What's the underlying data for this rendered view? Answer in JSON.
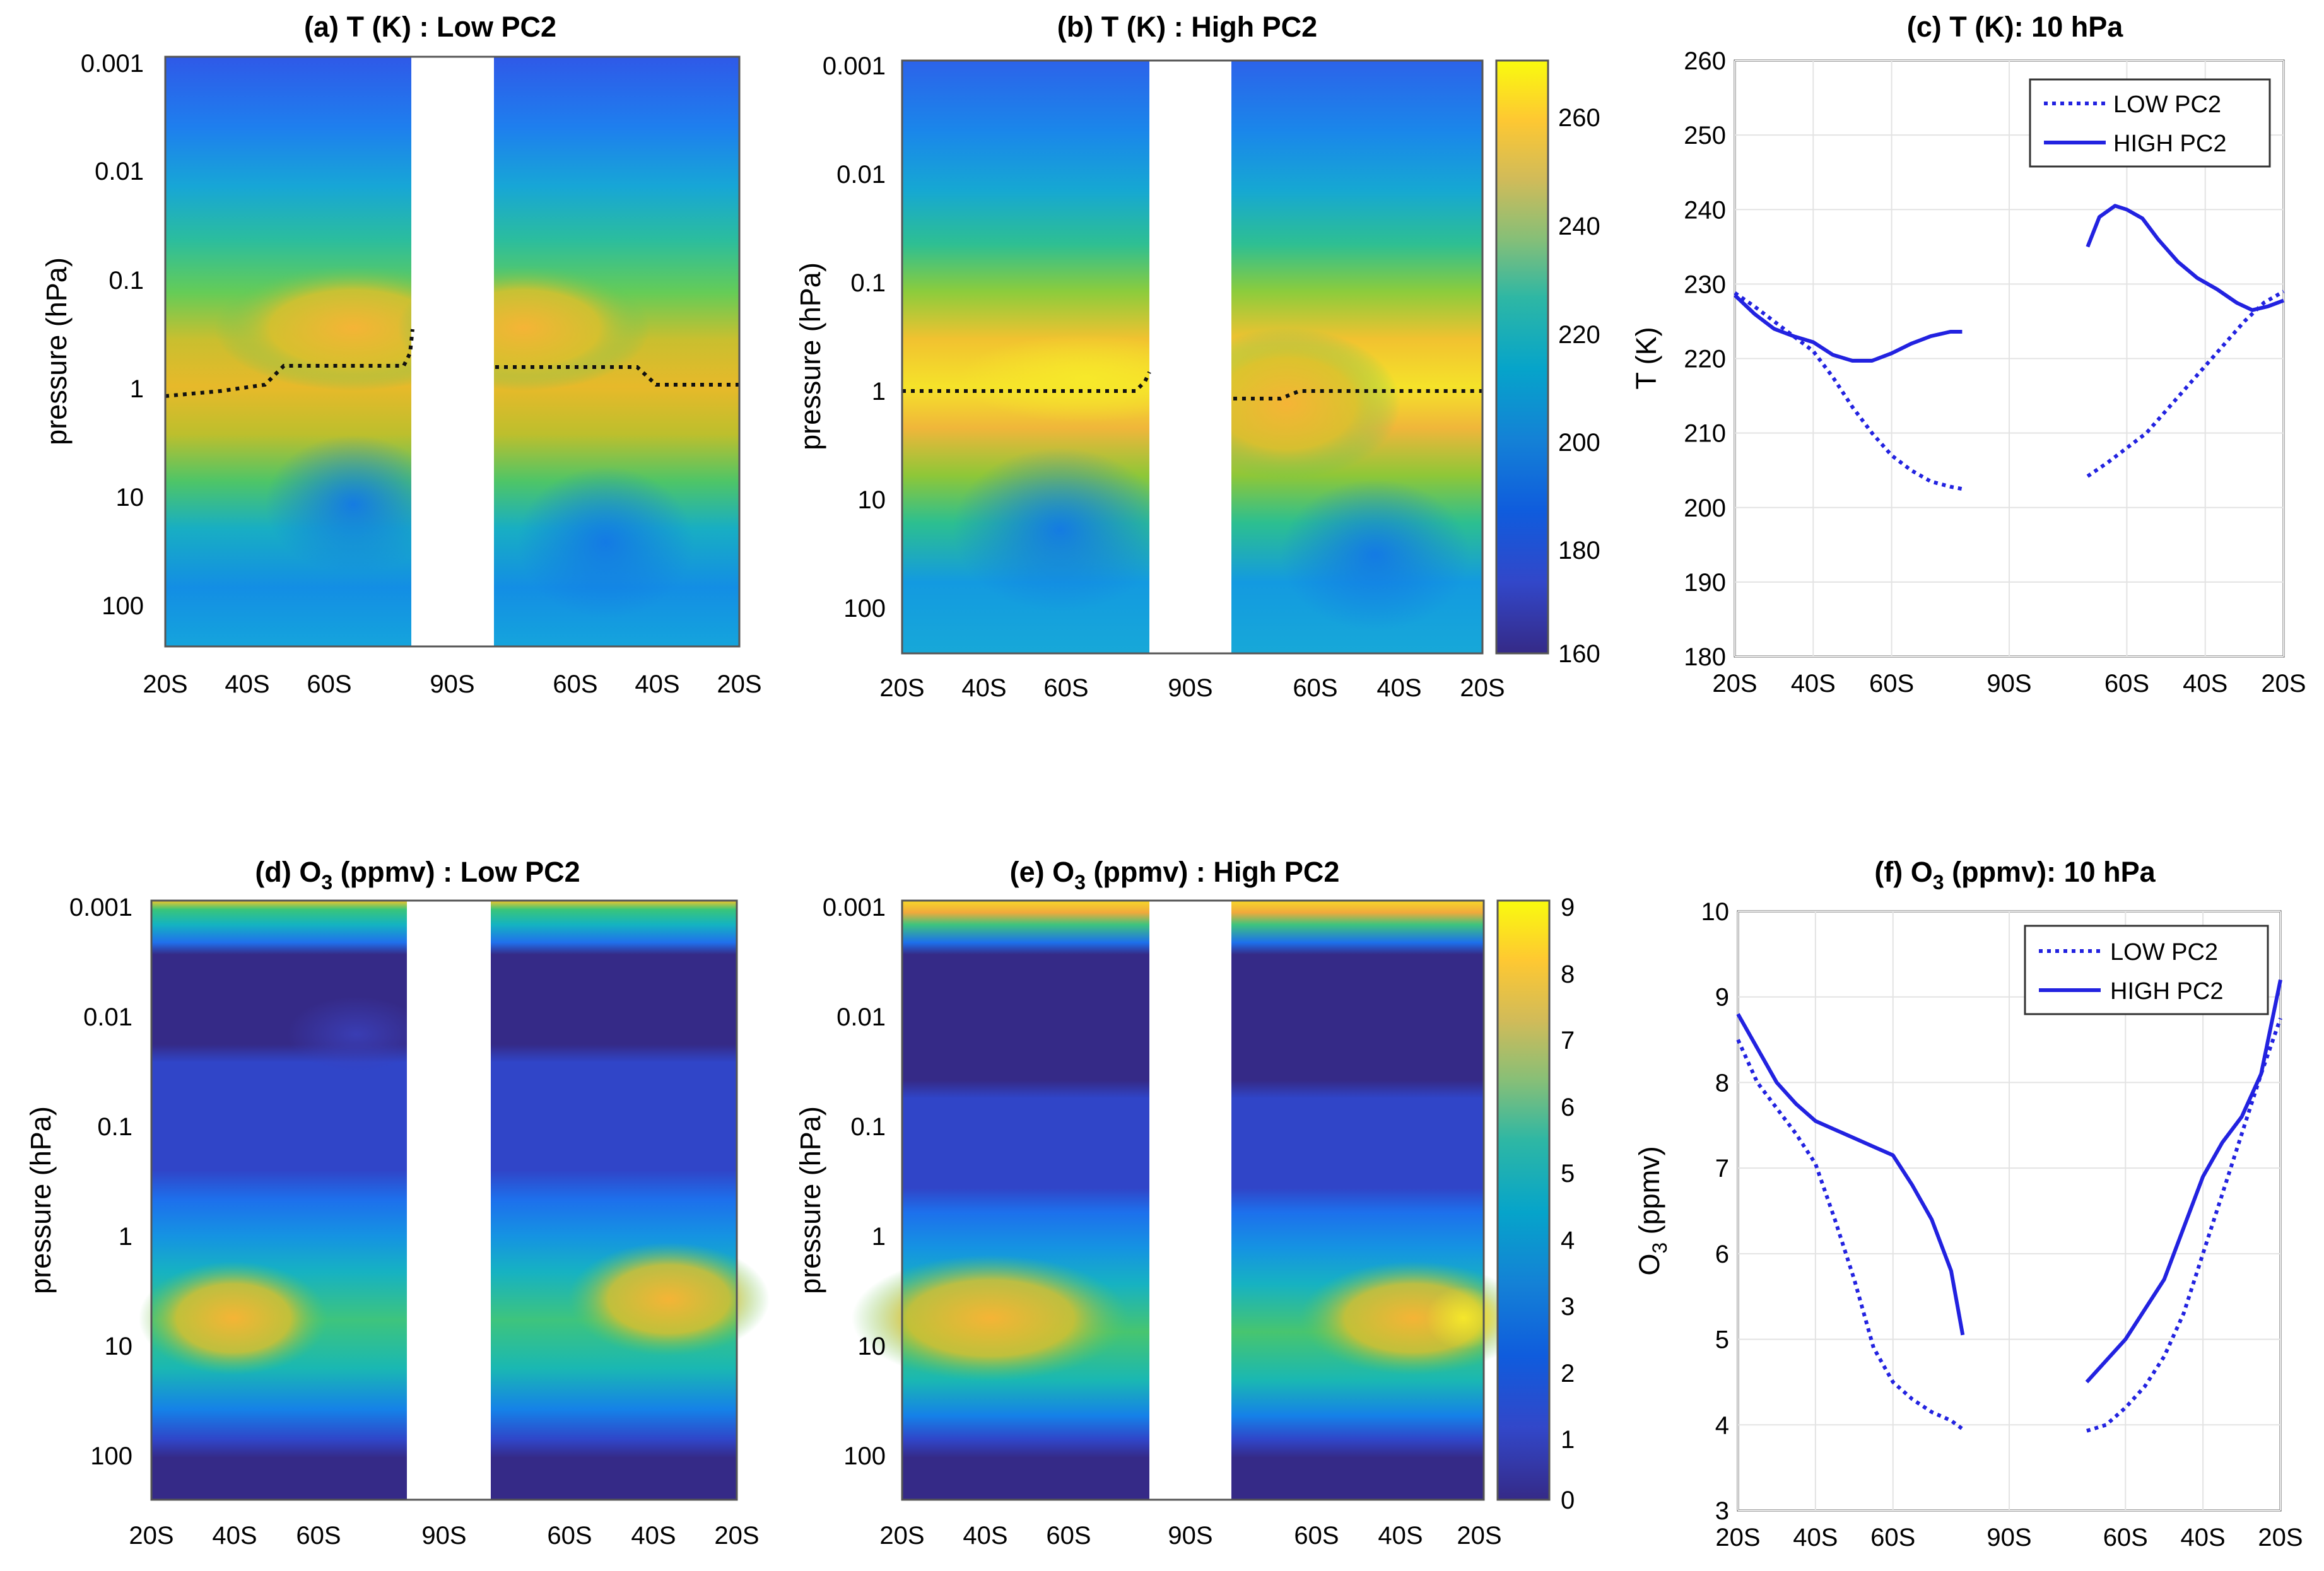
{
  "figure": {
    "panels": {
      "a": {
        "title": "(a) T (K) : Low PC2",
        "ylabel": "pressure (hPa)"
      },
      "b": {
        "title": "(b) T (K) : High PC2",
        "ylabel": "pressure (hPa)"
      },
      "c": {
        "title": "(c) T (K): 10 hPa",
        "ylabel": "T (K)"
      },
      "d": {
        "title_pre": "(d) O",
        "title_sub": "3",
        "title_post": " (ppmv) : Low PC2",
        "ylabel": "pressure (hPa)"
      },
      "e": {
        "title_pre": "(e) O",
        "title_sub": "3",
        "title_post": " (ppmv) : High PC2",
        "ylabel": "pressure (hPa)"
      },
      "f": {
        "title_pre": "(f) O",
        "title_sub": "3",
        "title_post": " (ppmv): 10 hPa",
        "ylabel_pre": "O",
        "ylabel_sub": "3",
        "ylabel_post": " (ppmv)"
      }
    },
    "pressure_ticks": [
      "0.001",
      "0.01",
      "0.1",
      "1",
      "10",
      "100"
    ],
    "lat_ticks": [
      "20S",
      "40S",
      "60S",
      "90S",
      "60S",
      "40S",
      "20S"
    ],
    "colorbar_T_ticks": [
      "260",
      "240",
      "220",
      "200",
      "180",
      "160"
    ],
    "colorbar_O3_ticks": [
      "9",
      "8",
      "7",
      "6",
      "5",
      "4",
      "3",
      "2",
      "1",
      "0"
    ],
    "legend_low": "LOW PC2",
    "legend_high": "HIGH PC2",
    "colors": {
      "line": "#2222e0",
      "panel_bg_low": "#2e38c8",
      "parula_dark": "#352a87",
      "parula_yellow": "#f9fb0e"
    }
  },
  "chart_data": [
    {
      "id": "c",
      "type": "line",
      "title": "(c) T (K): 10 hPa",
      "xlabel": "",
      "ylabel": "T (K)",
      "ylim": [
        180,
        260
      ],
      "yticks": [
        180,
        190,
        200,
        210,
        220,
        230,
        240,
        250,
        260
      ],
      "yticklabels": [
        "180",
        "190",
        "200",
        "210",
        "220",
        "230",
        "240",
        "250",
        "260"
      ],
      "x_positions_deg": [
        20,
        40,
        60,
        90,
        120,
        140,
        160
      ],
      "x_labels": [
        "20S",
        "40S",
        "60S",
        "90S",
        "60S",
        "40S",
        "20S"
      ],
      "xlim": [
        20,
        160
      ],
      "grid": true,
      "legend": "top-right",
      "series": [
        {
          "name": "LOW PC2",
          "style": "dotted",
          "segments": [
            [
              [
                20,
                228.8
              ],
              [
                25,
                227
              ],
              [
                30,
                225
              ],
              [
                35,
                223
              ],
              [
                40,
                221
              ],
              [
                45,
                217.5
              ],
              [
                50,
                213.5
              ],
              [
                55,
                210
              ],
              [
                60,
                207
              ],
              [
                65,
                205
              ],
              [
                70,
                203.5
              ],
              [
                75,
                202.8
              ],
              [
                78,
                202.5
              ]
            ],
            [
              [
                110,
                204.2
              ],
              [
                115,
                206
              ],
              [
                120,
                208
              ],
              [
                125,
                210
              ],
              [
                130,
                213
              ],
              [
                135,
                216
              ],
              [
                140,
                219
              ],
              [
                145,
                222
              ],
              [
                150,
                225
              ],
              [
                155,
                227.5
              ],
              [
                160,
                229
              ]
            ]
          ]
        },
        {
          "name": "HIGH PC2",
          "style": "solid",
          "segments": [
            [
              [
                20,
                228.5
              ],
              [
                25,
                226
              ],
              [
                30,
                224
              ],
              [
                35,
                223
              ],
              [
                40,
                222.2
              ],
              [
                45,
                220.5
              ],
              [
                50,
                219.7
              ],
              [
                55,
                219.7
              ],
              [
                60,
                220.7
              ],
              [
                65,
                222
              ],
              [
                70,
                223
              ],
              [
                75,
                223.6
              ],
              [
                78,
                223.6
              ]
            ],
            [
              [
                110,
                235
              ],
              [
                113,
                239
              ],
              [
                117,
                240.5
              ],
              [
                120,
                240
              ],
              [
                124,
                238.8
              ],
              [
                128,
                236
              ],
              [
                133,
                233
              ],
              [
                138,
                230.8
              ],
              [
                143,
                229.3
              ],
              [
                148,
                227.5
              ],
              [
                152,
                226.5
              ],
              [
                156,
                227
              ],
              [
                160,
                227.8
              ]
            ]
          ]
        }
      ]
    },
    {
      "id": "f",
      "type": "line",
      "title": "(f) O3 (ppmv): 10 hPa",
      "xlabel": "",
      "ylabel": "O3 (ppmv)",
      "ylim": [
        3,
        10
      ],
      "yticks": [
        3,
        4,
        5,
        6,
        7,
        8,
        9,
        10
      ],
      "yticklabels": [
        "3",
        "4",
        "5",
        "6",
        "7",
        "8",
        "9",
        "10"
      ],
      "x_positions_deg": [
        20,
        40,
        60,
        90,
        120,
        140,
        160
      ],
      "x_labels": [
        "20S",
        "40S",
        "60S",
        "90S",
        "60S",
        "40S",
        "20S"
      ],
      "xlim": [
        20,
        160
      ],
      "grid": true,
      "legend": "top-right",
      "series": [
        {
          "name": "LOW PC2",
          "style": "dotted",
          "segments": [
            [
              [
                20,
                8.5
              ],
              [
                25,
                8.0
              ],
              [
                30,
                7.7
              ],
              [
                35,
                7.4
              ],
              [
                40,
                7.05
              ],
              [
                45,
                6.4
              ],
              [
                50,
                5.7
              ],
              [
                55,
                4.9
              ],
              [
                60,
                4.5
              ],
              [
                65,
                4.3
              ],
              [
                70,
                4.15
              ],
              [
                75,
                4.05
              ],
              [
                78,
                3.95
              ]
            ],
            [
              [
                110,
                3.93
              ],
              [
                115,
                4.0
              ],
              [
                120,
                4.2
              ],
              [
                125,
                4.45
              ],
              [
                130,
                4.8
              ],
              [
                135,
                5.3
              ],
              [
                140,
                6.0
              ],
              [
                145,
                6.7
              ],
              [
                150,
                7.4
              ],
              [
                155,
                8.1
              ],
              [
                160,
                8.75
              ]
            ]
          ]
        },
        {
          "name": "HIGH PC2",
          "style": "solid",
          "segments": [
            [
              [
                20,
                8.8
              ],
              [
                25,
                8.4
              ],
              [
                30,
                8.0
              ],
              [
                35,
                7.75
              ],
              [
                40,
                7.55
              ],
              [
                45,
                7.45
              ],
              [
                50,
                7.35
              ],
              [
                55,
                7.25
              ],
              [
                60,
                7.15
              ],
              [
                65,
                6.8
              ],
              [
                70,
                6.4
              ],
              [
                75,
                5.8
              ],
              [
                78,
                5.05
              ]
            ],
            [
              [
                110,
                4.5
              ],
              [
                115,
                4.75
              ],
              [
                120,
                5.0
              ],
              [
                125,
                5.35
              ],
              [
                130,
                5.7
              ],
              [
                135,
                6.3
              ],
              [
                140,
                6.9
              ],
              [
                145,
                7.3
              ],
              [
                150,
                7.6
              ],
              [
                155,
                8.1
              ],
              [
                160,
                9.2
              ]
            ]
          ]
        }
      ]
    },
    {
      "id": "a",
      "type": "heatmap",
      "title": "(a) T (K) : Low PC2",
      "ylabel": "pressure (hPa)",
      "y_ticks": [
        "0.001",
        "0.01",
        "0.1",
        "1",
        "10",
        "100"
      ],
      "x_labels": [
        "20S",
        "40S",
        "60S",
        "90S",
        "60S",
        "40S",
        "20S"
      ],
      "colorbar": "shared with (b)",
      "clim": [
        160,
        270
      ],
      "tropopause_dotted_hPa": [
        [
          20,
          1.1
        ],
        [
          40,
          1.0
        ],
        [
          55,
          0.75
        ],
        [
          70,
          0.75
        ],
        [
          78,
          0.5
        ],
        [
          100,
          0.75
        ],
        [
          120,
          0.75
        ],
        [
          140,
          1.0
        ],
        [
          160,
          1.0
        ]
      ]
    },
    {
      "id": "b",
      "type": "heatmap",
      "title": "(b) T (K) : High PC2",
      "ylabel": "pressure (hPa)",
      "y_ticks": [
        "0.001",
        "0.01",
        "0.1",
        "1",
        "10",
        "100"
      ],
      "x_labels": [
        "20S",
        "40S",
        "60S",
        "90S",
        "60S",
        "40S",
        "20S"
      ],
      "colorbar_ticks": [
        160,
        180,
        200,
        220,
        240,
        260
      ],
      "clim": [
        160,
        270
      ],
      "tropopause_dotted_hPa": [
        [
          20,
          1.0
        ],
        [
          70,
          1.0
        ],
        [
          78,
          0.75
        ],
        [
          100,
          1.2
        ],
        [
          115,
          1.0
        ],
        [
          160,
          1.0
        ]
      ]
    },
    {
      "id": "d",
      "type": "heatmap",
      "title": "(d) O3 (ppmv) : Low PC2",
      "ylabel": "pressure (hPa)",
      "y_ticks": [
        "0.001",
        "0.01",
        "0.1",
        "1",
        "10",
        "100"
      ],
      "x_labels": [
        "20S",
        "40S",
        "60S",
        "90S",
        "60S",
        "40S",
        "20S"
      ],
      "colorbar": "shared with (e)",
      "clim": [
        0,
        9
      ]
    },
    {
      "id": "e",
      "type": "heatmap",
      "title": "(e) O3 (ppmv) : High PC2",
      "ylabel": "pressure (hPa)",
      "y_ticks": [
        "0.001",
        "0.01",
        "0.1",
        "1",
        "10",
        "100"
      ],
      "x_labels": [
        "20S",
        "40S",
        "60S",
        "90S",
        "60S",
        "40S",
        "20S"
      ],
      "colorbar_ticks": [
        0,
        1,
        2,
        3,
        4,
        5,
        6,
        7,
        8,
        9
      ],
      "clim": [
        0,
        9
      ]
    }
  ]
}
